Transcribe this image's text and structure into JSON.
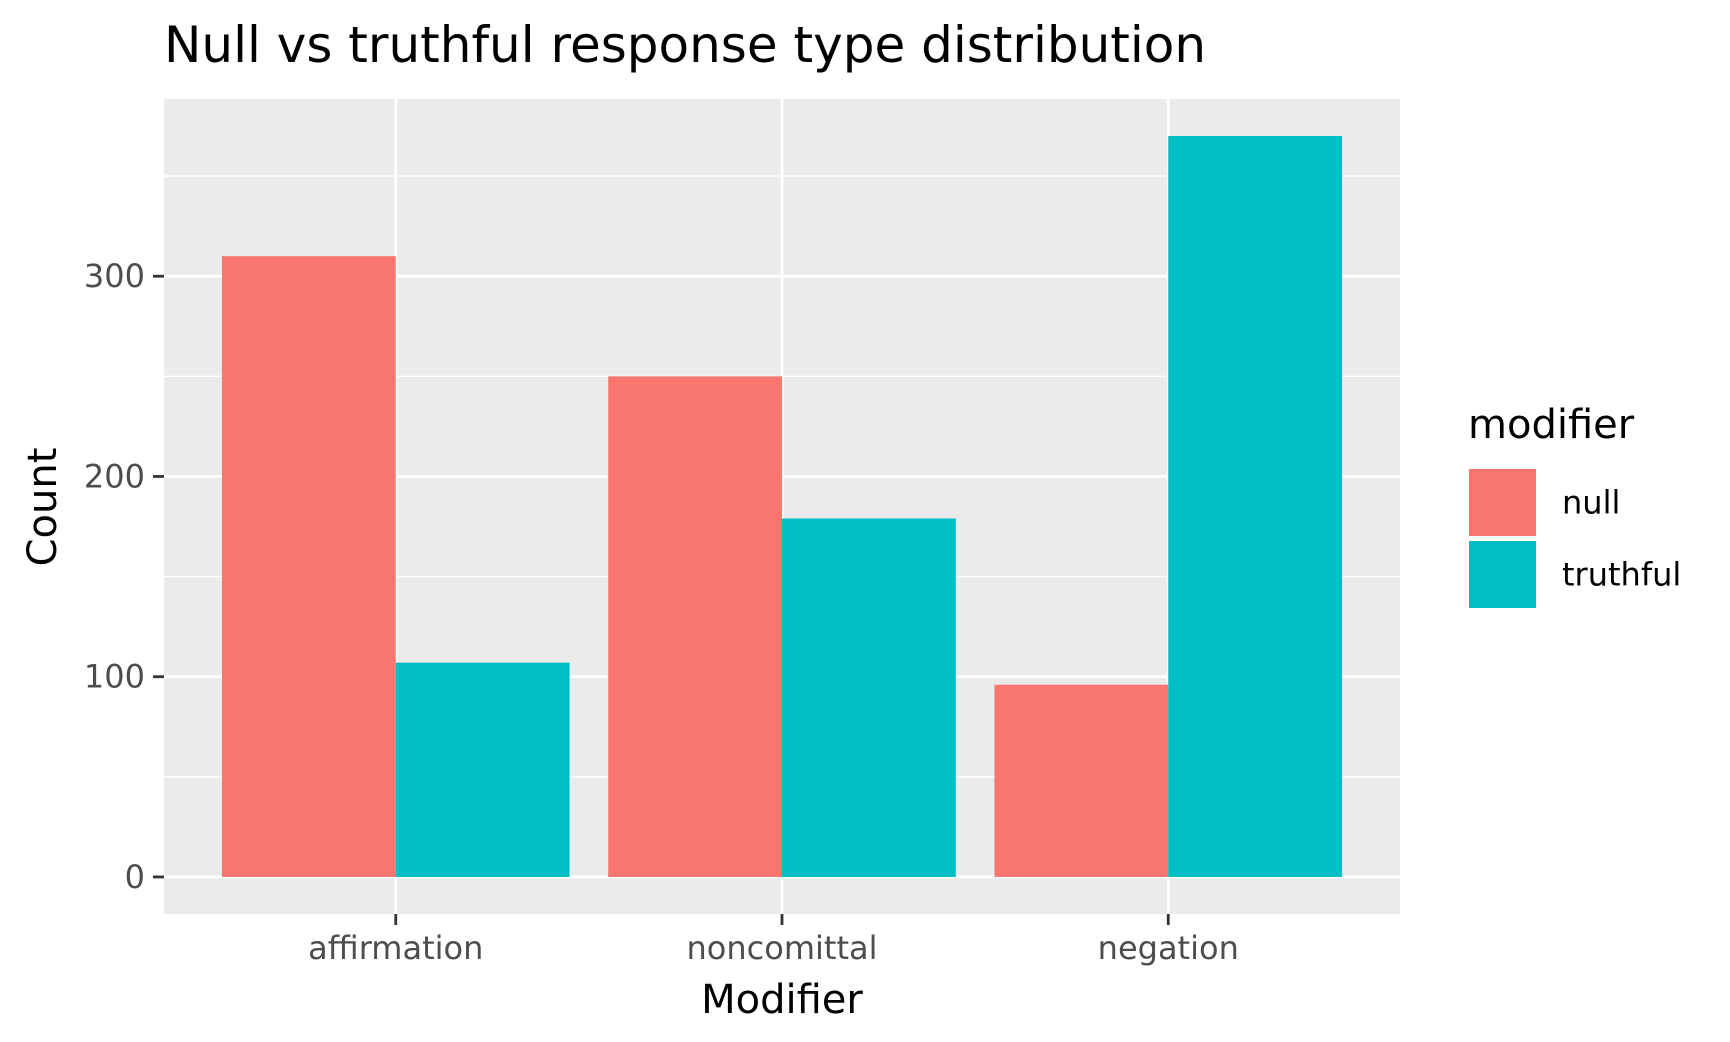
{
  "chart_data": {
    "type": "bar",
    "title": "Null vs truthful response type distribution",
    "xlabel": "Modifier",
    "ylabel": "Count",
    "categories": [
      "affirmation",
      "noncomittal",
      "negation"
    ],
    "series": [
      {
        "name": "null",
        "values": [
          310,
          250,
          96
        ],
        "color": "#F8766D"
      },
      {
        "name": "truthful",
        "values": [
          107,
          179,
          370
        ],
        "color": "#00BFC4"
      }
    ],
    "ylim": [
      -18.5,
      388.5
    ],
    "yticks": [
      0,
      100,
      200,
      300
    ],
    "ytick_labels": [
      "0",
      "100",
      "200",
      "300"
    ],
    "grid": true,
    "panel_background": "#EBEBEB",
    "legend": {
      "title": "modifier",
      "placement": "right"
    }
  }
}
